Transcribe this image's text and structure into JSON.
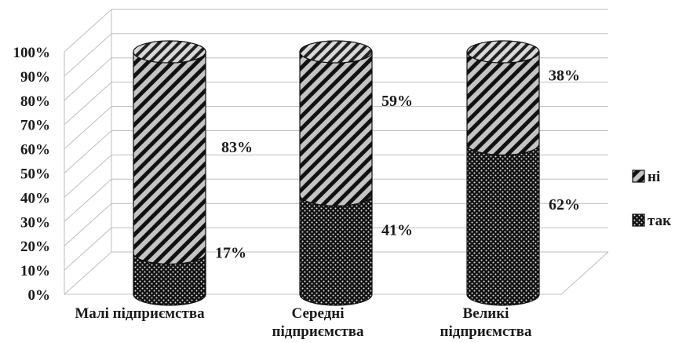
{
  "chart_data": {
    "type": "bar",
    "stacked": true,
    "percent": true,
    "style": "3d-cylinder",
    "categories": [
      [
        "Малі підприємства"
      ],
      [
        "Середні",
        "підприємства"
      ],
      [
        "Великі",
        "підприємства"
      ]
    ],
    "series": [
      {
        "name": "так",
        "values": [
          17,
          41,
          62
        ],
        "labels": [
          "17%",
          "41%",
          "62%"
        ],
        "pattern": "dots"
      },
      {
        "name": "ні",
        "values": [
          83,
          59,
          38
        ],
        "labels": [
          "83%",
          "59%",
          "38%"
        ],
        "pattern": "diagonal-stripes"
      }
    ],
    "ylim": [
      0,
      100
    ],
    "yticks": [
      "0%",
      "10%",
      "20%",
      "30%",
      "40%",
      "50%",
      "60%",
      "70%",
      "80%",
      "90%",
      "100%"
    ],
    "grid": true,
    "legend_position": "right",
    "legend_order": [
      "ні",
      "так"
    ]
  }
}
